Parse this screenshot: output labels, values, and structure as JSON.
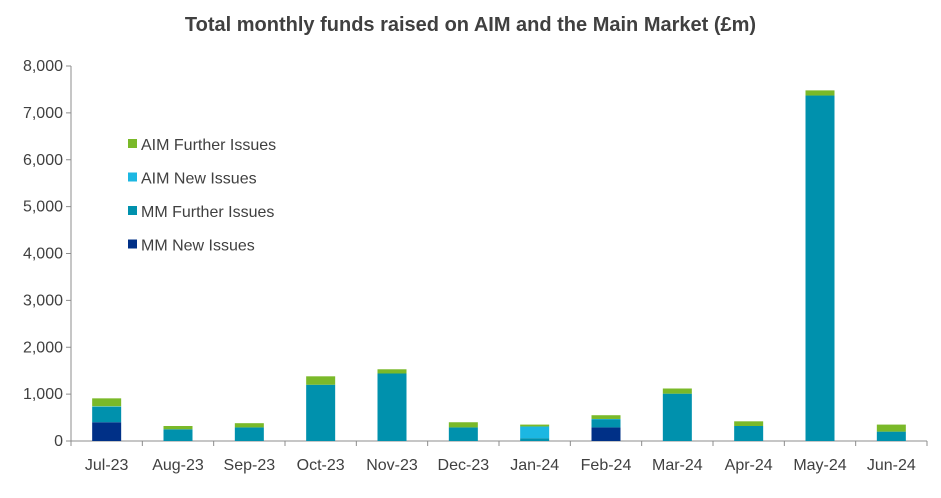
{
  "chart_data": {
    "type": "bar",
    "stacked": true,
    "title": "Total monthly funds raised on AIM and the Main Market (£m)",
    "xlabel": "",
    "ylabel": "",
    "ylim": [
      0,
      8000
    ],
    "yticks": [
      0,
      1000,
      2000,
      3000,
      4000,
      5000,
      6000,
      7000,
      8000
    ],
    "ytick_labels": [
      "0",
      "1,000",
      "2,000",
      "3,000",
      "4,000",
      "5,000",
      "6,000",
      "7,000",
      "8,000"
    ],
    "grid": false,
    "legend_position": "top-left",
    "categories": [
      "Jul-23",
      "Aug-23",
      "Sep-23",
      "Oct-23",
      "Nov-23",
      "Dec-23",
      "Jan-24",
      "Feb-24",
      "Mar-24",
      "Apr-24",
      "May-24",
      "Jun-24"
    ],
    "series": [
      {
        "name": "MM New Issues",
        "color": "#003087",
        "values": [
          400,
          0,
          0,
          0,
          0,
          0,
          0,
          290,
          0,
          0,
          0,
          0
        ]
      },
      {
        "name": "MM Further Issues",
        "color": "#0091AD",
        "values": [
          330,
          250,
          290,
          1200,
          1440,
          290,
          60,
          170,
          1010,
          320,
          7370,
          200
        ]
      },
      {
        "name": "AIM New Issues",
        "color": "#1CB7E2",
        "values": [
          10,
          0,
          0,
          0,
          0,
          0,
          250,
          10,
          0,
          0,
          0,
          0
        ]
      },
      {
        "name": "AIM Further Issues",
        "color": "#7AB929",
        "values": [
          170,
          70,
          90,
          180,
          90,
          110,
          40,
          80,
          110,
          100,
          110,
          150
        ]
      }
    ]
  }
}
